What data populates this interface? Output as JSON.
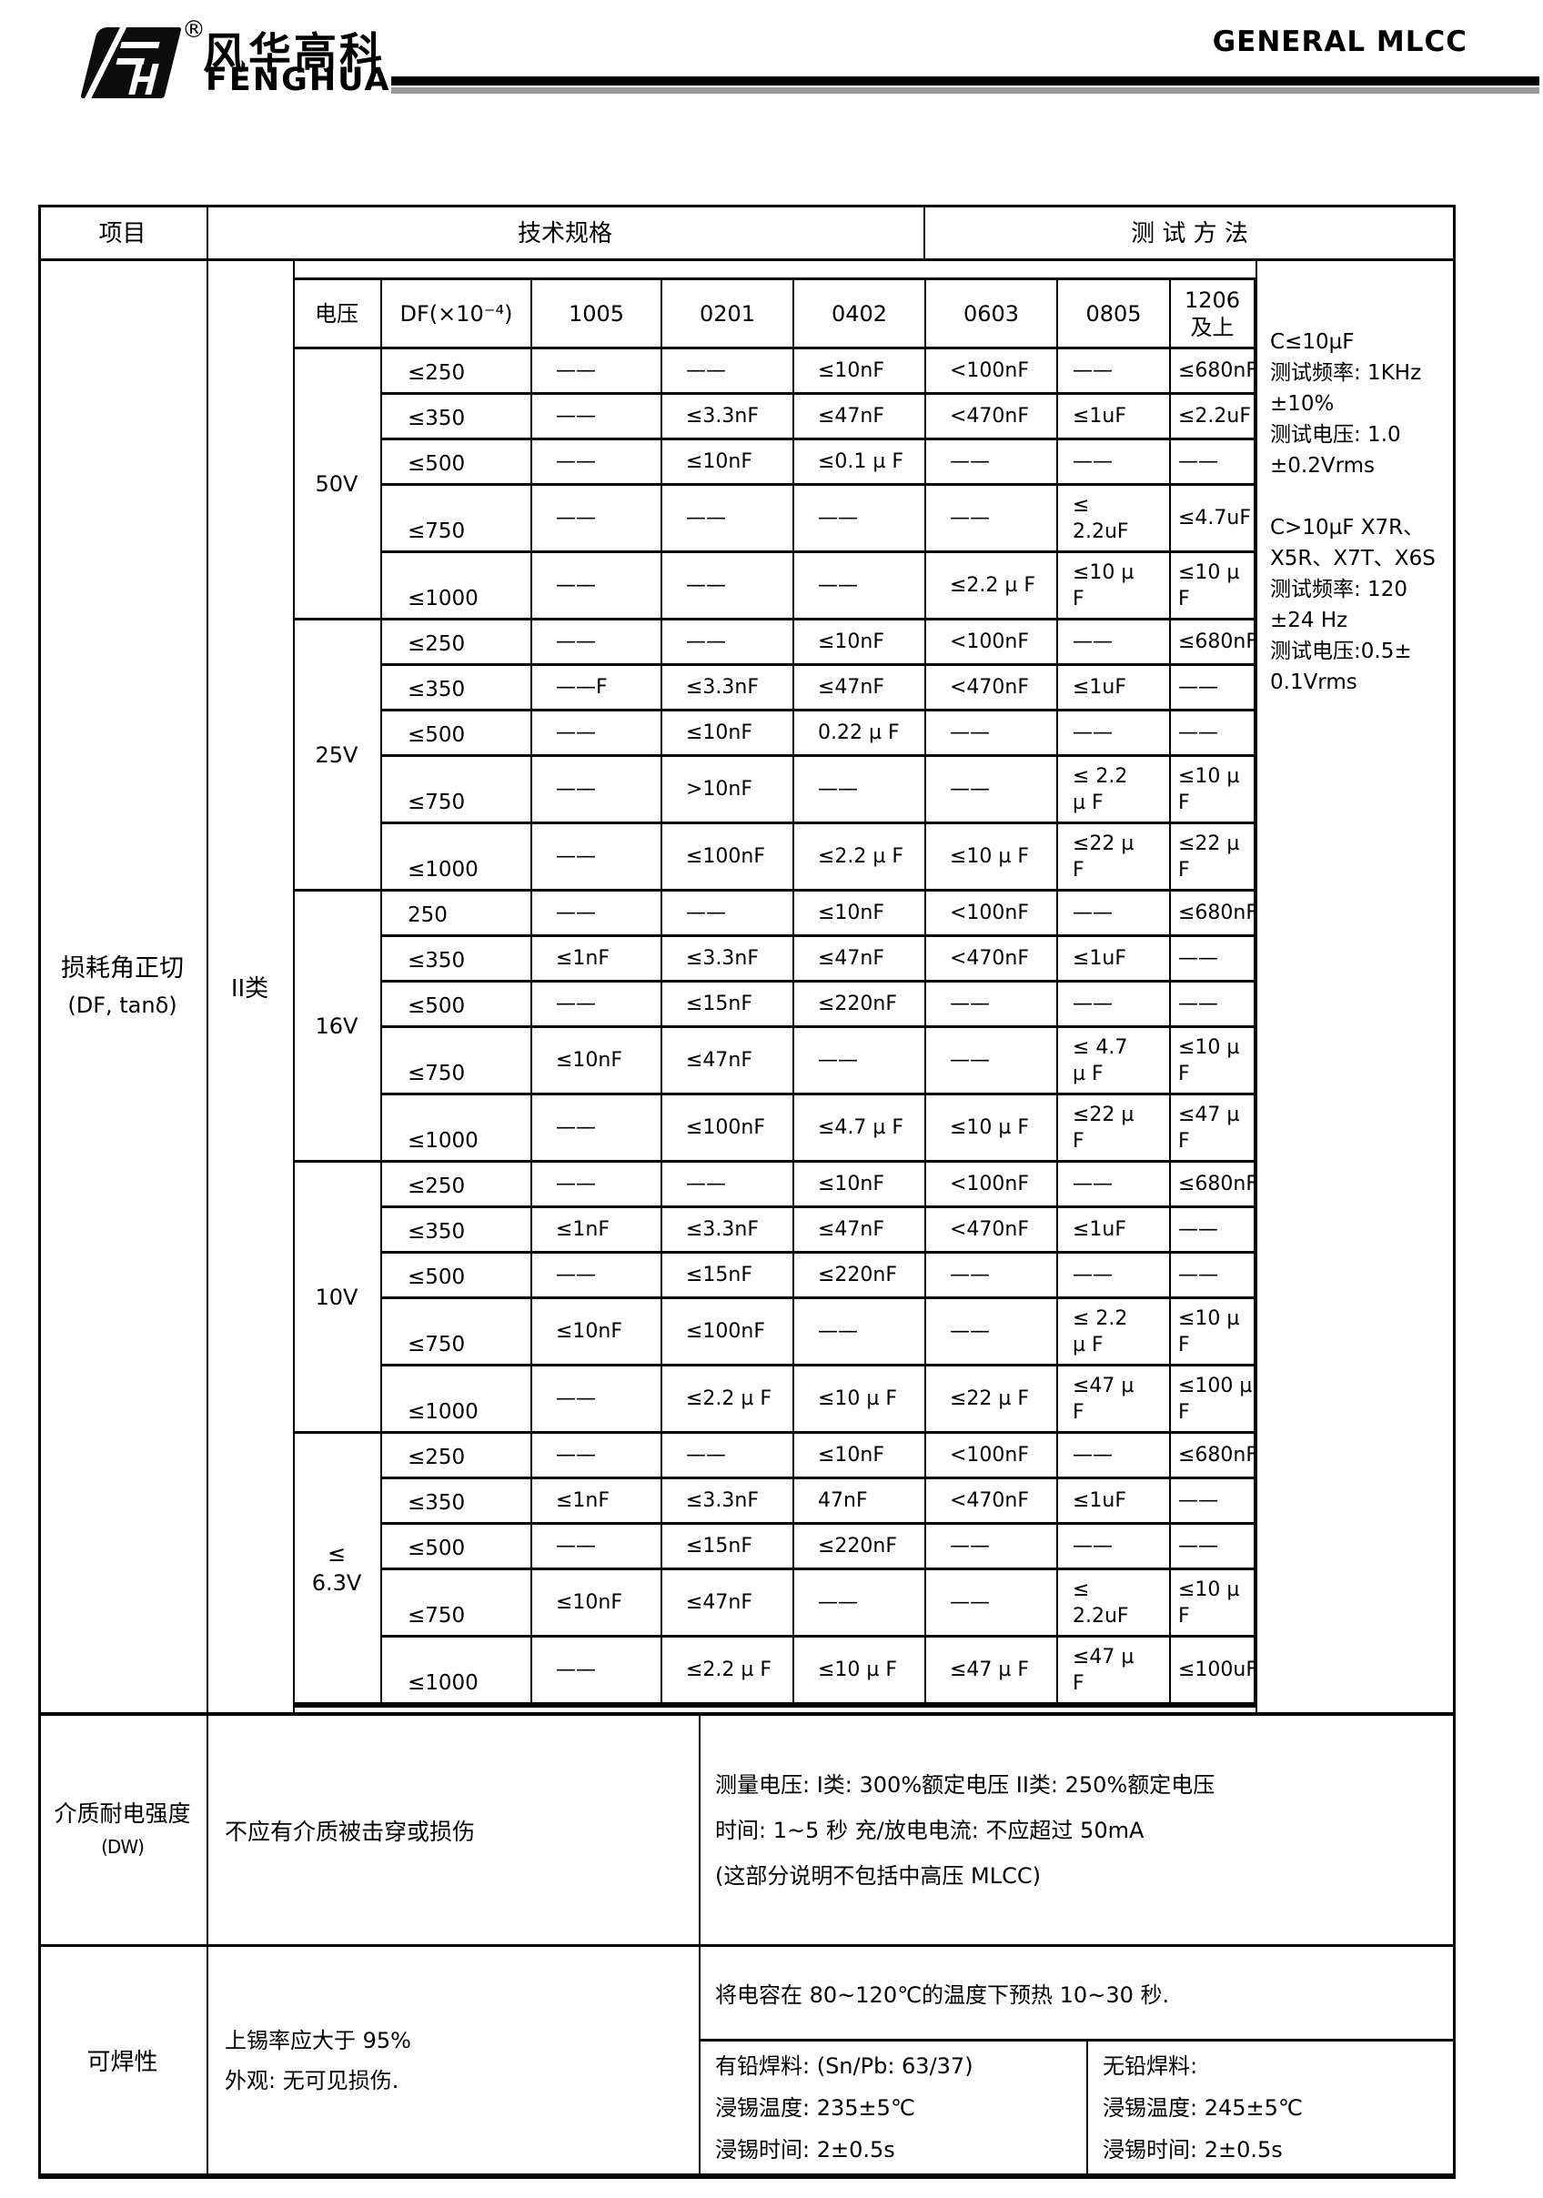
{
  "header": {
    "brand_cn": "风华高科",
    "brand_en": "FENGHUA",
    "registered": "®",
    "doc_title": "GENERAL MLCC"
  },
  "table": {
    "head": {
      "item": "项目",
      "spec": "技术规格",
      "method": "测 试 方 法"
    },
    "df": {
      "item_label": "损耗角正切",
      "item_sublabel": "(DF, tanδ)",
      "class_label": "II类",
      "spec_table": {
        "headers": [
          "电压",
          "DF(×10⁻⁴)",
          "1005",
          "0201",
          "0402",
          "0603",
          "0805",
          "1206 及上"
        ],
        "blocks": [
          {
            "voltage": "50V",
            "rows": [
              {
                "df": "≤250",
                "values": [
                  "——",
                  "——",
                  "≤10nF",
                  "<100nF",
                  "——",
                  "≤680nF"
                ]
              },
              {
                "df": "≤350",
                "values": [
                  "——",
                  "≤3.3nF",
                  "≤47nF",
                  "<470nF",
                  "≤1uF",
                  "≤2.2uF"
                ]
              },
              {
                "df": "≤500",
                "values": [
                  "——",
                  "≤10nF",
                  "≤0.1 µ F",
                  "——",
                  "——",
                  "——"
                ]
              },
              {
                "df": "≤750",
                "values": [
                  "——",
                  "——",
                  "——",
                  "——",
                  "≤\n2.2uF",
                  "≤4.7uF"
                ]
              },
              {
                "df": "≤1000",
                "values": [
                  "——",
                  "——",
                  "——",
                  "≤2.2 µ F",
                  "≤10 µ\nF",
                  "≤10 µ F"
                ]
              }
            ]
          },
          {
            "voltage": "25V",
            "rows": [
              {
                "df": "≤250",
                "values": [
                  "——",
                  "——",
                  "≤10nF",
                  "<100nF",
                  "——",
                  "≤680nF"
                ]
              },
              {
                "df": "≤350",
                "values": [
                  "——F",
                  "≤3.3nF",
                  "≤47nF",
                  "<470nF",
                  "≤1uF",
                  "——"
                ]
              },
              {
                "df": "≤500",
                "values": [
                  "——",
                  "≤10nF",
                  "0.22 µ F",
                  "——",
                  "——",
                  "——"
                ]
              },
              {
                "df": "≤750",
                "values": [
                  "——",
                  ">10nF",
                  "——",
                  "——",
                  "≤ 2.2\nµ F",
                  "≤10 µ F"
                ]
              },
              {
                "df": "≤1000",
                "values": [
                  "——",
                  "≤100nF",
                  "≤2.2 µ F",
                  "≤10 µ F",
                  "≤22 µ\nF",
                  "≤22 µ F"
                ]
              }
            ]
          },
          {
            "voltage": "16V",
            "rows": [
              {
                "df": "250",
                "values": [
                  "——",
                  "——",
                  "≤10nF",
                  "<100nF",
                  "——",
                  "≤680nF"
                ]
              },
              {
                "df": "≤350",
                "values": [
                  "≤1nF",
                  "≤3.3nF",
                  "≤47nF",
                  "<470nF",
                  "≤1uF",
                  "——"
                ]
              },
              {
                "df": "≤500",
                "values": [
                  "——",
                  "≤15nF",
                  "≤220nF",
                  "——",
                  "——",
                  "——"
                ]
              },
              {
                "df": "≤750",
                "values": [
                  "≤10nF",
                  "≤47nF",
                  "——",
                  "——",
                  "≤ 4.7\nµ F",
                  "≤10 µ F"
                ]
              },
              {
                "df": "≤1000",
                "values": [
                  "——",
                  "≤100nF",
                  "≤4.7 µ F",
                  "≤10 µ F",
                  "≤22 µ\nF",
                  "≤47 µ F"
                ]
              }
            ]
          },
          {
            "voltage": "10V",
            "rows": [
              {
                "df": "≤250",
                "values": [
                  "——",
                  "——",
                  "≤10nF",
                  "<100nF",
                  "——",
                  "≤680nF"
                ]
              },
              {
                "df": "≤350",
                "values": [
                  "≤1nF",
                  "≤3.3nF",
                  "≤47nF",
                  "<470nF",
                  "≤1uF",
                  "——"
                ]
              },
              {
                "df": "≤500",
                "values": [
                  "——",
                  "≤15nF",
                  "≤220nF",
                  "——",
                  "——",
                  "——"
                ]
              },
              {
                "df": "≤750",
                "values": [
                  "≤10nF",
                  "≤100nF",
                  "——",
                  "——",
                  "≤ 2.2\nµ F",
                  "≤10 µ F"
                ]
              },
              {
                "df": "≤1000",
                "values": [
                  "——",
                  "≤2.2 µ F",
                  "≤10 µ F",
                  "≤22 µ F",
                  "≤47 µ\nF",
                  "≤100 µ F"
                ]
              }
            ]
          },
          {
            "voltage": "≤\n6.3V",
            "rows": [
              {
                "df": "≤250",
                "values": [
                  "——",
                  "——",
                  "≤10nF",
                  "<100nF",
                  "——",
                  "≤680nF"
                ]
              },
              {
                "df": "≤350",
                "values": [
                  "≤1nF",
                  "≤3.3nF",
                  "47nF",
                  "<470nF",
                  "≤1uF",
                  "——"
                ]
              },
              {
                "df": "≤500",
                "values": [
                  "——",
                  "≤15nF",
                  "≤220nF",
                  "——",
                  "——",
                  "——"
                ]
              },
              {
                "df": "≤750",
                "values": [
                  "≤10nF",
                  "≤47nF",
                  "——",
                  "——",
                  "≤\n2.2uF",
                  "≤10 µ F"
                ]
              },
              {
                "df": "≤1000",
                "values": [
                  "——",
                  "≤2.2 µ F",
                  "≤10 µ F",
                  "≤47 µ F",
                  "≤47 µ\nF",
                  "≤100uF"
                ]
              }
            ]
          }
        ]
      },
      "method_lines": [
        "C≤10µF",
        "测试频率: 1KHz",
        "±10%",
        "测试电压: 1.0",
        "±0.2Vrms",
        "",
        "C>10µF  X7R、",
        "X5R、X7T、X6S",
        "测试频率: 120",
        "±24 Hz",
        "测试电压:0.5±",
        "0.1Vrms"
      ]
    },
    "dw": {
      "item_label": "介质耐电强度",
      "item_sublabel": "(DW)",
      "spec": "不应有介质被击穿或损伤",
      "method_lines": [
        "测量电压: I类: 300%额定电压    II类: 250%额定电压",
        "时间: 1~5 秒    充/放电电流: 不应超过 50mA",
        "(这部分说明不包括中高压 MLCC)"
      ]
    },
    "solder": {
      "item_label": "可焊性",
      "spec_lines": [
        "上锡率应大于 95%",
        "外观: 无可见损伤."
      ],
      "preheat": "将电容在 80~120℃的温度下预热 10~30 秒.",
      "leaded_lines": [
        "有铅焊料: (Sn/Pb: 63/37)",
        "浸锡温度: 235±5℃",
        "浸锡时间: 2±0.5s"
      ],
      "leadfree_lines": [
        "无铅焊料:",
        "浸锡温度: 245±5℃",
        "浸锡时间: 2±0.5s"
      ]
    }
  },
  "colors": {
    "border": "#000000",
    "rule_shadow": "#9a9a9a",
    "text": "#000000",
    "background": "#ffffff"
  }
}
